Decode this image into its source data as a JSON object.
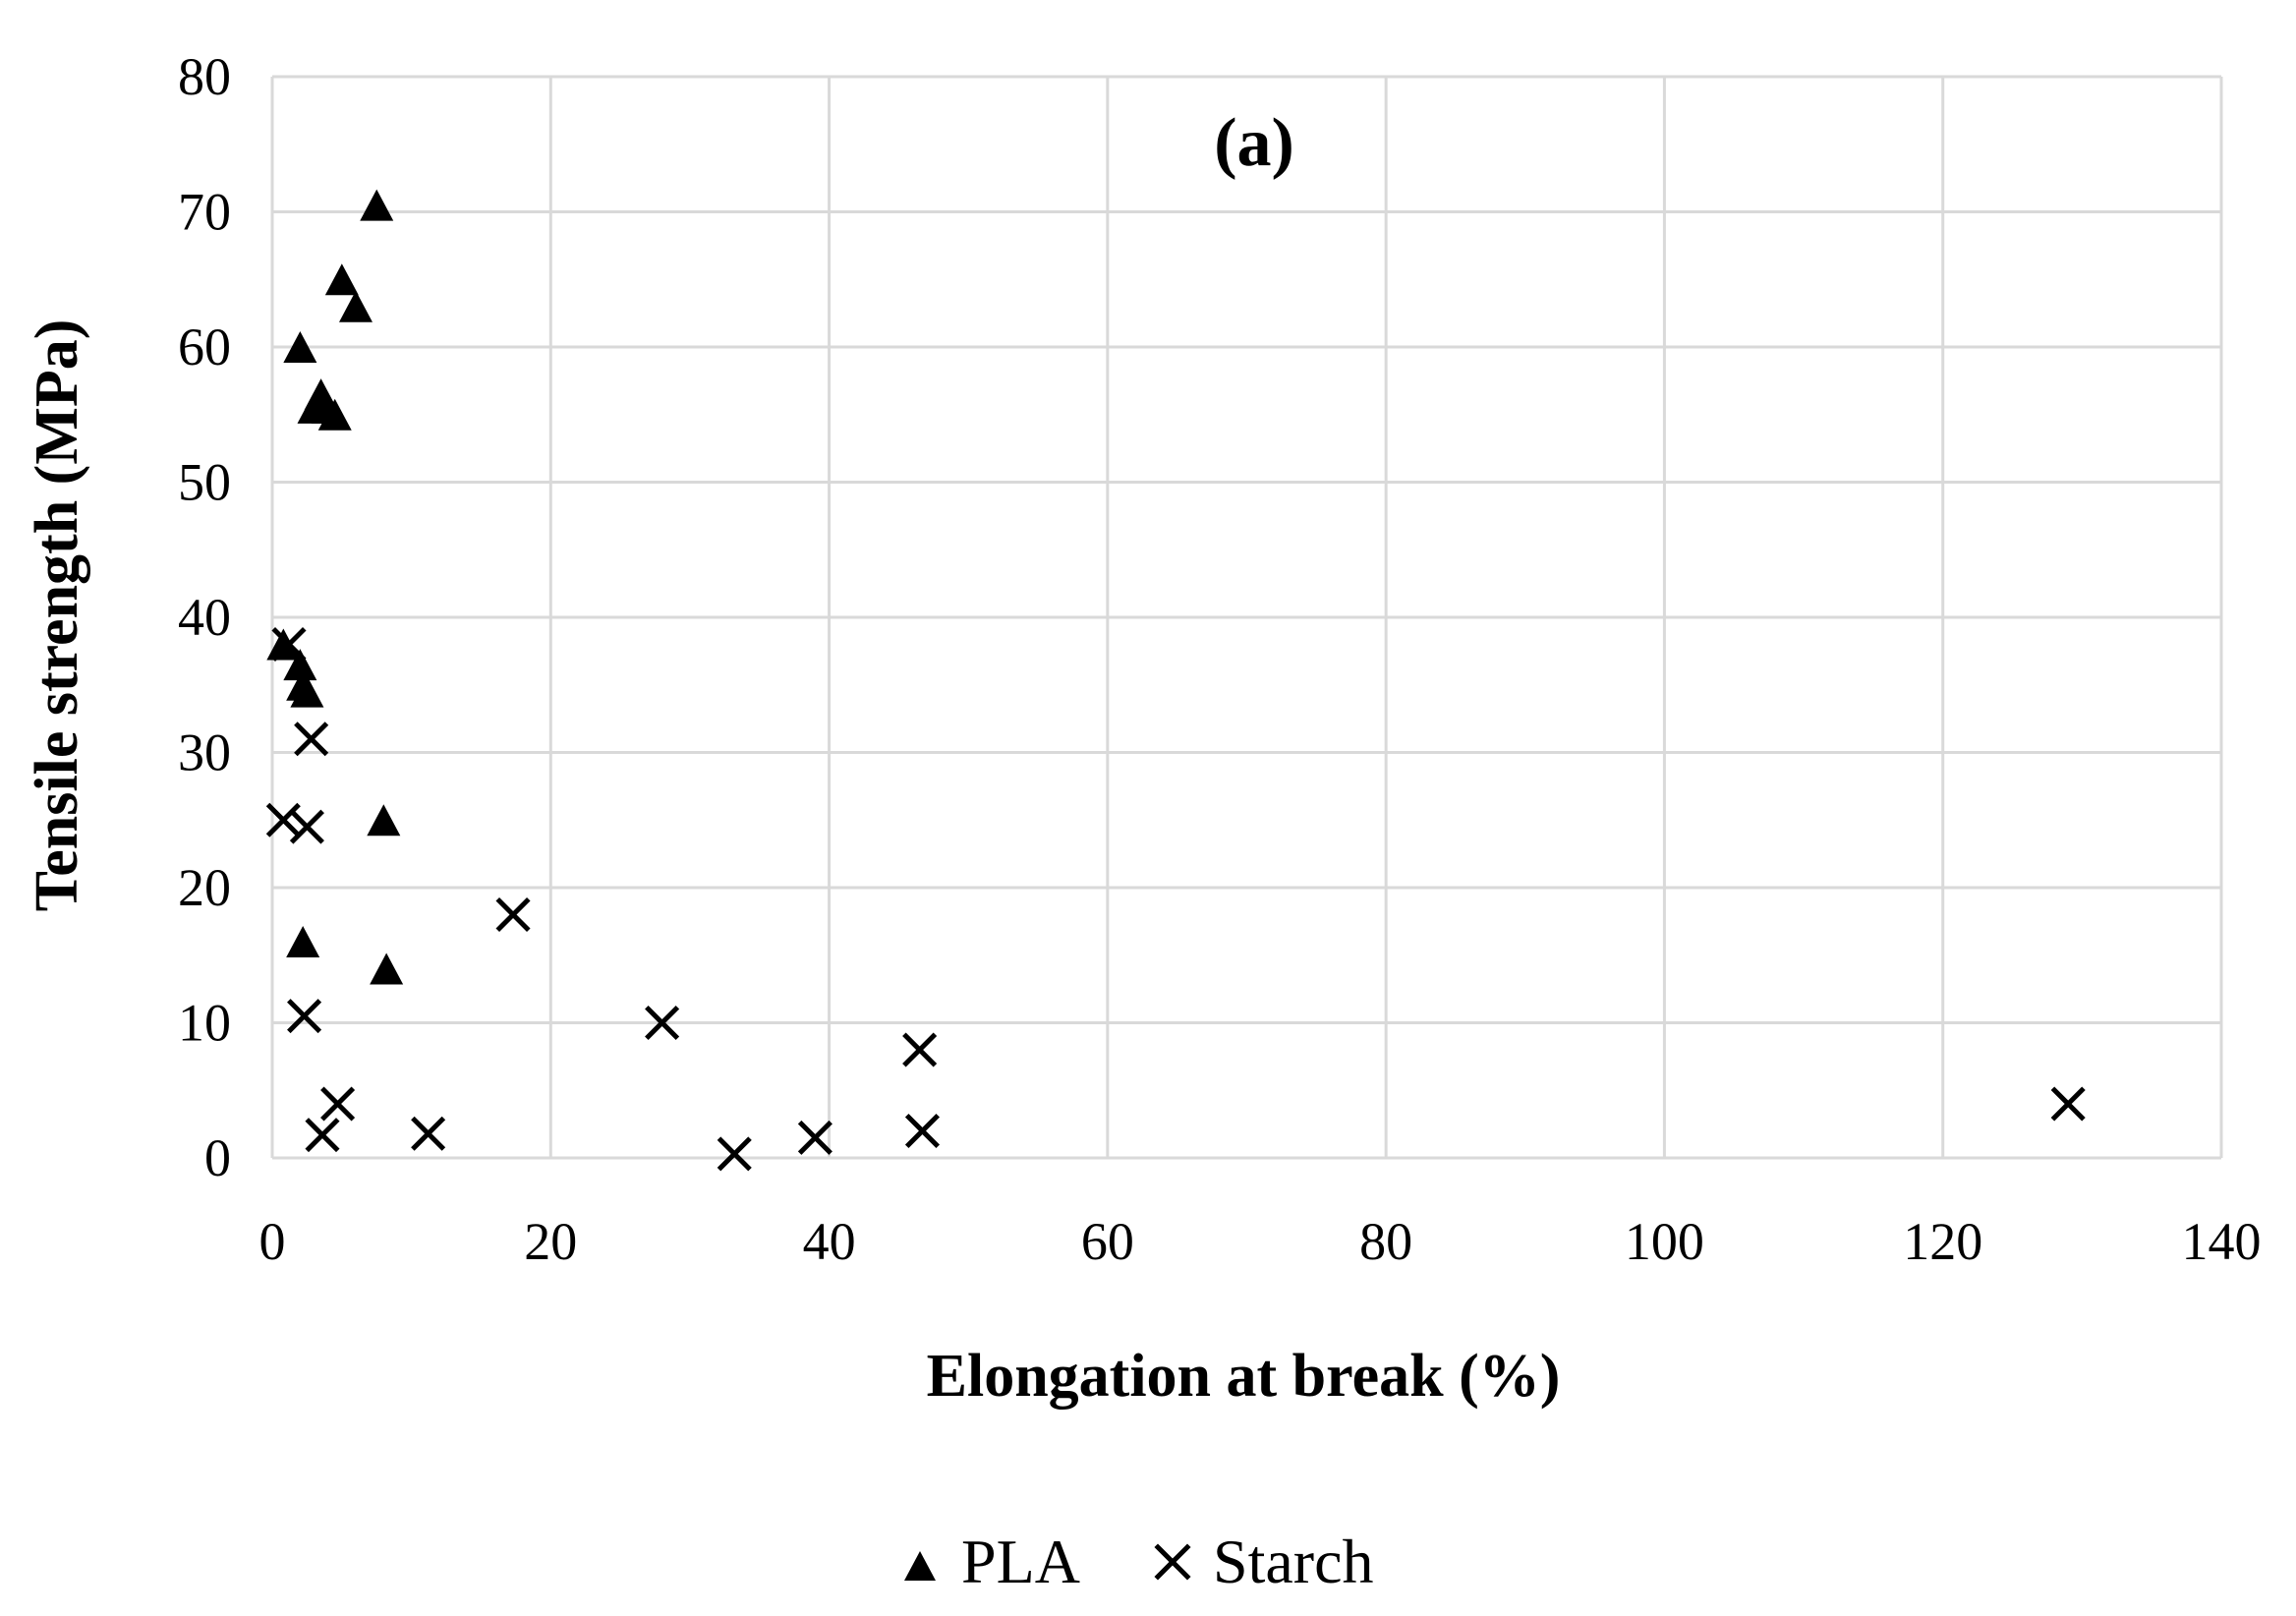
{
  "chart_data": {
    "type": "scatter",
    "panel_label": "(a)",
    "xlabel": "Elongation at break (%)",
    "ylabel": "Tensile strength (MPa)",
    "xlim": [
      0,
      140
    ],
    "ylim": [
      0,
      80
    ],
    "xticks": [
      0,
      20,
      40,
      60,
      80,
      100,
      120,
      140
    ],
    "yticks": [
      0,
      10,
      20,
      30,
      40,
      50,
      60,
      70,
      80
    ],
    "grid": true,
    "legend_position": "bottom",
    "series": [
      {
        "name": "PLA",
        "marker": "triangle",
        "color": "#000000",
        "points": [
          {
            "x": 7.5,
            "y": 70.5
          },
          {
            "x": 5.0,
            "y": 65.0
          },
          {
            "x": 6.0,
            "y": 63.0
          },
          {
            "x": 2.0,
            "y": 60.0
          },
          {
            "x": 3.0,
            "y": 55.5
          },
          {
            "x": 3.5,
            "y": 56.5
          },
          {
            "x": 4.0,
            "y": 55.5
          },
          {
            "x": 4.5,
            "y": 55.0
          },
          {
            "x": 0.8,
            "y": 38.0
          },
          {
            "x": 2.0,
            "y": 36.5
          },
          {
            "x": 2.2,
            "y": 35.0
          },
          {
            "x": 2.5,
            "y": 34.5
          },
          {
            "x": 8.0,
            "y": 25.0
          },
          {
            "x": 2.2,
            "y": 16.0
          },
          {
            "x": 8.2,
            "y": 14.0
          }
        ]
      },
      {
        "name": "Starch",
        "marker": "x",
        "color": "#000000",
        "points": [
          {
            "x": 1.2,
            "y": 38.0
          },
          {
            "x": 2.8,
            "y": 31.0
          },
          {
            "x": 0.8,
            "y": 25.0
          },
          {
            "x": 2.5,
            "y": 24.5
          },
          {
            "x": 17.3,
            "y": 18.0
          },
          {
            "x": 2.3,
            "y": 10.5
          },
          {
            "x": 28.0,
            "y": 10.0
          },
          {
            "x": 46.5,
            "y": 8.0
          },
          {
            "x": 4.7,
            "y": 4.0
          },
          {
            "x": 129.0,
            "y": 4.0
          },
          {
            "x": 3.6,
            "y": 1.7
          },
          {
            "x": 11.2,
            "y": 1.8
          },
          {
            "x": 46.7,
            "y": 2.0
          },
          {
            "x": 39.0,
            "y": 1.5
          },
          {
            "x": 33.2,
            "y": 0.3
          }
        ]
      }
    ]
  }
}
